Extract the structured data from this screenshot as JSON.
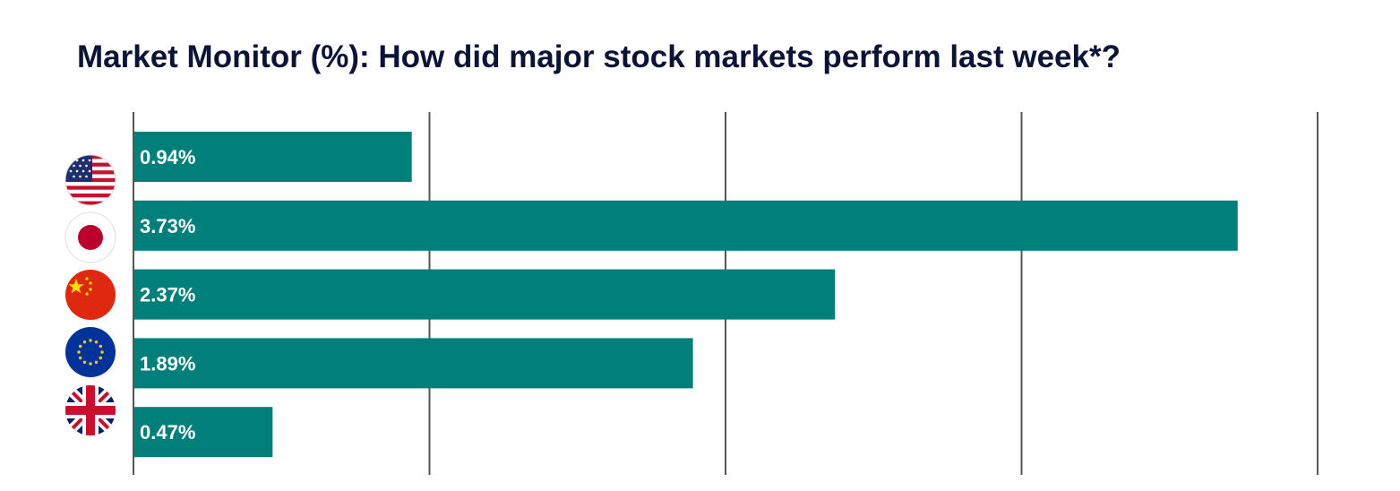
{
  "chart_data": {
    "type": "bar",
    "orientation": "horizontal",
    "title": "Market Monitor (%): How did major stock markets perform last week*?",
    "categories": [
      "US",
      "Japan",
      "China",
      "Eurozone",
      "UK"
    ],
    "category_icons": [
      "us-flag-icon",
      "japan-flag-icon",
      "china-flag-icon",
      "eu-flag-icon",
      "uk-flag-icon"
    ],
    "values": [
      0.94,
      3.73,
      2.37,
      1.89,
      0.47
    ],
    "data_labels": [
      "0.94%",
      "3.73%",
      "2.37%",
      "1.89%",
      "0.47%"
    ],
    "xlim": [
      0,
      4
    ],
    "xgrid": [
      0,
      1,
      2,
      3,
      4
    ],
    "grid": true,
    "bar_color": "#007f7b",
    "label_color": "#ffffff"
  },
  "colors": {
    "title": "#0b1437",
    "gridline": "#555555"
  }
}
